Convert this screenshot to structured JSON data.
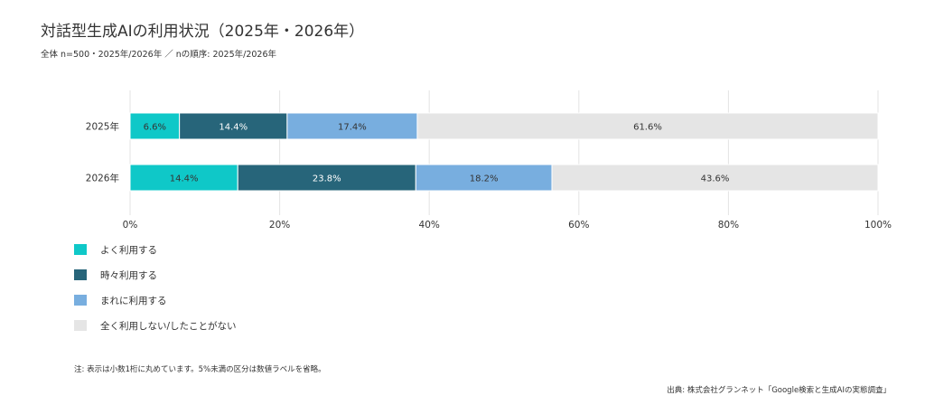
{
  "title": "対話型生成AIの利用状況（2025年・2026年）",
  "subtitle": "全体 n=500・2025年/2026年 ／ nの順序: 2025年/2026年",
  "chart_data": {
    "type": "bar",
    "orientation": "horizontal",
    "stacked": true,
    "categories": [
      "2025年",
      "2026年"
    ],
    "series": [
      {
        "name": "よく利用する",
        "values": [
          6.6,
          14.4
        ],
        "labels": [
          "6.6%",
          "14.4%"
        ],
        "color": "#0fc8c8"
      },
      {
        "name": "時々利用する",
        "values": [
          14.4,
          23.8
        ],
        "labels": [
          "14.4%",
          "23.8%"
        ],
        "color": "#27657a"
      },
      {
        "name": "まれに利用する",
        "values": [
          17.4,
          18.2
        ],
        "labels": [
          "17.4%",
          "18.2%"
        ],
        "color": "#78aedf"
      },
      {
        "name": "全く利用しない/したことがない",
        "values": [
          61.6,
          43.6
        ],
        "labels": [
          "61.6%",
          "43.6%"
        ],
        "color": "#e5e5e5"
      }
    ],
    "xlim": [
      0,
      100
    ],
    "xticks": [
      "0%",
      "20%",
      "40%",
      "60%",
      "80%",
      "100%"
    ],
    "grid": true,
    "legend_position": "bottom-left",
    "label_colors": {
      "light_segment": "#333333",
      "dark_segment": "#ffffff"
    }
  },
  "footnote": "注: 表示は小数1桁に丸めています。5%未満の区分は数値ラベルを省略。",
  "source": "出典: 株式会社グランネット「Google検索と生成AIの実態調査」"
}
